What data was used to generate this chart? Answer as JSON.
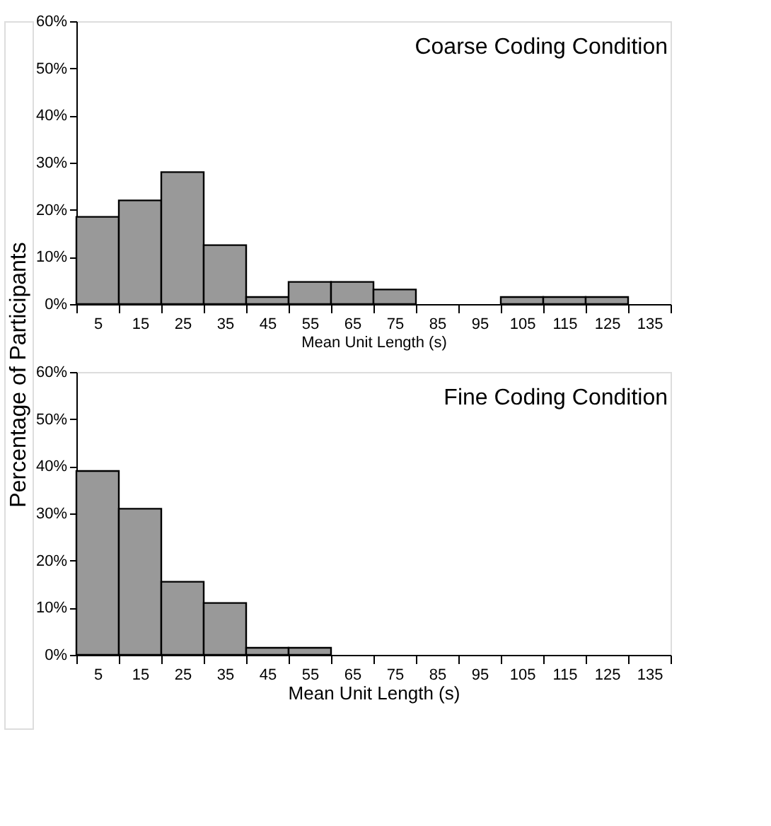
{
  "chart_data": [
    {
      "type": "histogram",
      "title": "Coarse Coding Condition",
      "xlabel": "Mean Unit Length (s)",
      "ylabel": "Percentage of Participants",
      "color": "#999999",
      "bins": [
        0,
        10,
        20,
        30,
        40,
        50,
        60,
        70,
        80,
        90,
        100,
        110,
        120,
        130,
        140
      ],
      "values": [
        18.5,
        22,
        28,
        12.5,
        1.5,
        4.7,
        4.7,
        3.1,
        0,
        0,
        1.5,
        1.5,
        1.5,
        0
      ],
      "xlim": [
        0,
        140
      ],
      "xticks": [
        {
          "value": 0,
          "label": null
        },
        5,
        {
          "value": 10,
          "label": null
        },
        15,
        {
          "value": 20,
          "label": null
        },
        25,
        {
          "value": 30,
          "label": null
        },
        35,
        {
          "value": 40,
          "label": null
        },
        45,
        {
          "value": 50,
          "label": null
        },
        55,
        {
          "value": 60,
          "label": null
        },
        65,
        {
          "value": 70,
          "label": null
        },
        75,
        {
          "value": 80,
          "label": null
        },
        85,
        {
          "value": 90,
          "label": null
        },
        95,
        {
          "value": 100,
          "label": null
        },
        105,
        {
          "value": 110,
          "label": null
        },
        115,
        {
          "value": 120,
          "label": null
        },
        125,
        {
          "value": 130,
          "label": null
        },
        135,
        {
          "value": 140,
          "label": null
        }
      ],
      "ylim": [
        0,
        60
      ],
      "yticks": [
        {
          "value": 0,
          "label": "0%"
        },
        {
          "value": 10,
          "label": "10%"
        },
        {
          "value": 20,
          "label": "20%"
        },
        {
          "value": 30,
          "label": "30%"
        },
        {
          "value": 40,
          "label": "40%"
        },
        {
          "value": 50,
          "label": "50%"
        },
        {
          "value": 60,
          "label": "60%"
        }
      ]
    },
    {
      "type": "histogram",
      "title": "Fine Coding Condition",
      "xlabel": "Mean Unit Length (s)",
      "color": "#999999",
      "bins": [
        0,
        10,
        20,
        30,
        40,
        50,
        60,
        70,
        80,
        90,
        100,
        110,
        120,
        130,
        140
      ],
      "values": [
        39,
        31,
        15.5,
        11,
        1.5,
        1.5,
        0,
        0,
        0,
        0,
        0,
        0,
        0,
        0
      ],
      "xlim": [
        0,
        140
      ],
      "xticks": [
        {
          "value": 0,
          "label": null
        },
        5,
        {
          "value": 10,
          "label": null
        },
        15,
        {
          "value": 20,
          "label": null
        },
        25,
        {
          "value": 30,
          "label": null
        },
        35,
        {
          "value": 40,
          "label": null
        },
        45,
        {
          "value": 50,
          "label": null
        },
        55,
        {
          "value": 60,
          "label": null
        },
        65,
        {
          "value": 70,
          "label": null
        },
        75,
        {
          "value": 80,
          "label": null
        },
        85,
        {
          "value": 90,
          "label": null
        },
        95,
        {
          "value": 100,
          "label": null
        },
        105,
        {
          "value": 110,
          "label": null
        },
        115,
        {
          "value": 120,
          "label": null
        },
        125,
        {
          "value": 130,
          "label": null
        },
        135,
        {
          "value": 140,
          "label": null
        }
      ],
      "ylim": [
        0,
        60
      ],
      "yticks": [
        {
          "value": 0,
          "label": "0%"
        },
        {
          "value": 10,
          "label": "10%"
        },
        {
          "value": 20,
          "label": "20%"
        },
        {
          "value": 30,
          "label": "30%"
        },
        {
          "value": 40,
          "label": "40%"
        },
        {
          "value": 50,
          "label": "50%"
        },
        {
          "value": 60,
          "label": "60%"
        }
      ]
    }
  ]
}
